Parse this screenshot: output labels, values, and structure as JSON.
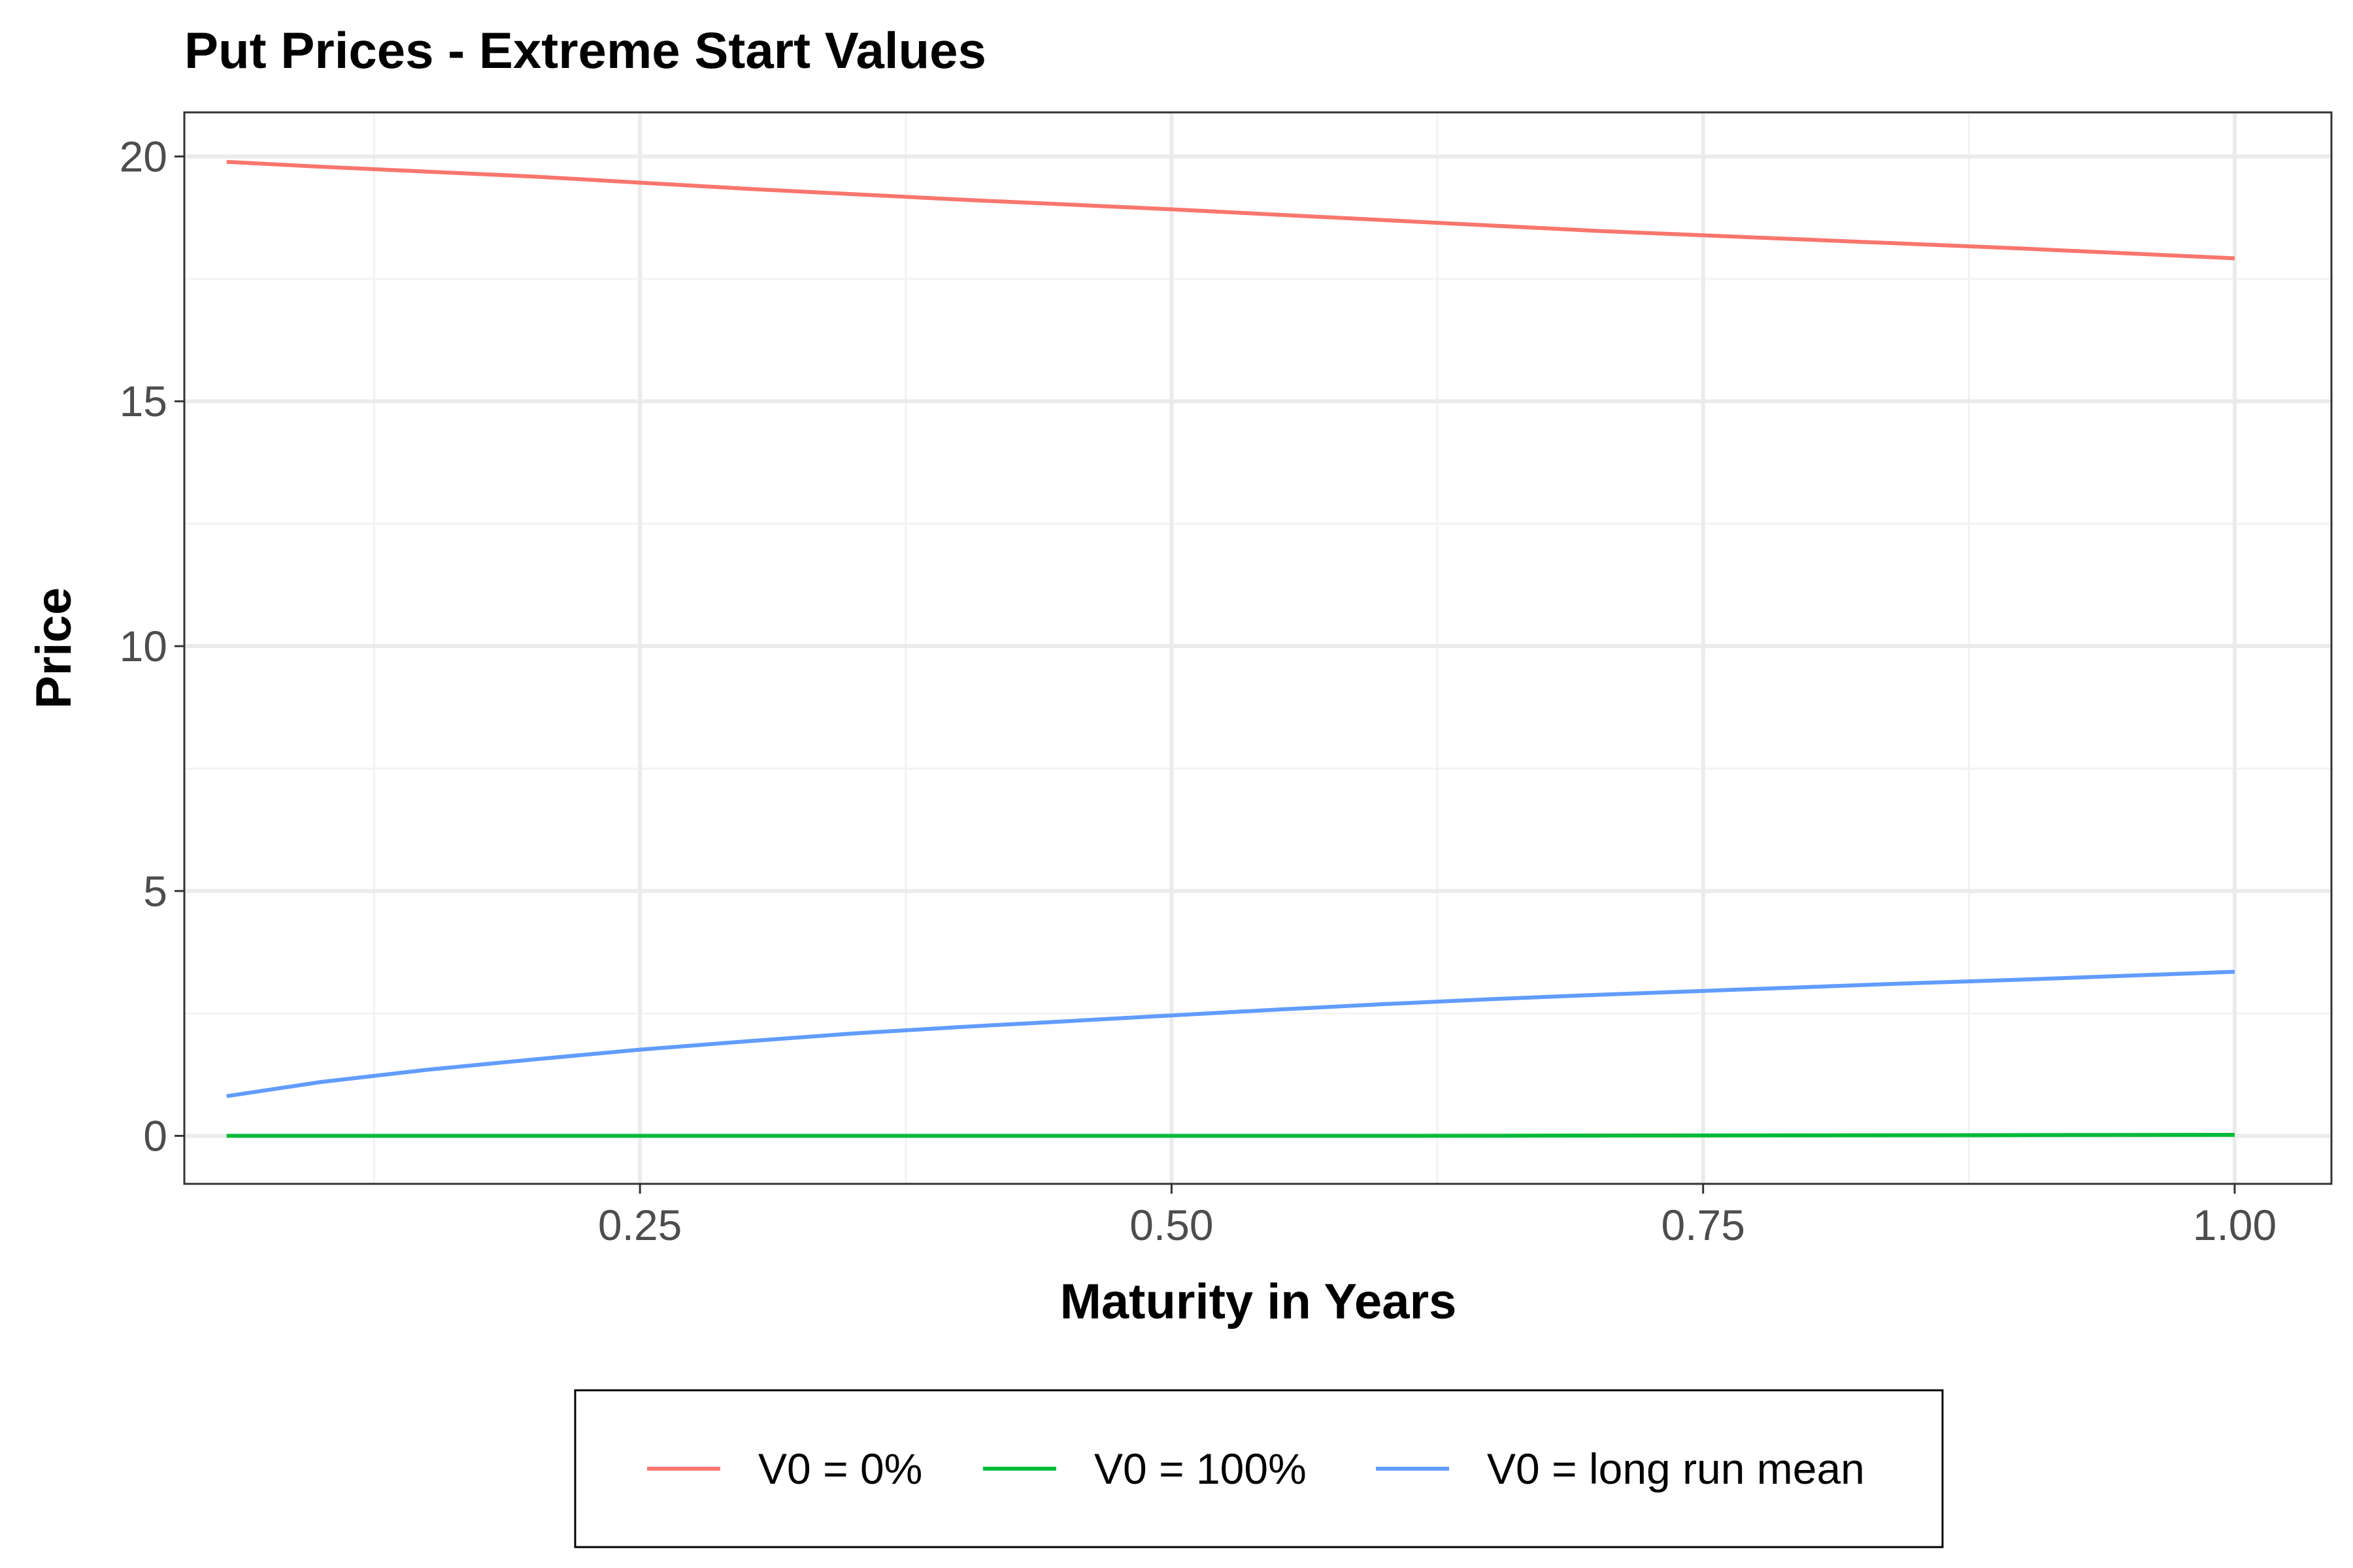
{
  "chart_data": {
    "type": "line",
    "title": "Put Prices - Extreme Start Values",
    "xlabel": "Maturity in Years",
    "ylabel": "Price",
    "xlim": [
      0.0357,
      1.0455
    ],
    "ylim": [
      -0.98,
      20.9
    ],
    "x_ticks": [
      0.25,
      0.5,
      0.75,
      1.0
    ],
    "x_tick_labels": [
      "0.25",
      "0.50",
      "0.75",
      "1.00"
    ],
    "y_ticks": [
      0,
      5,
      10,
      15,
      20
    ],
    "y_tick_labels": [
      "0",
      "5",
      "10",
      "15",
      "20"
    ],
    "grid": true,
    "legend_position": "bottom",
    "series": [
      {
        "name": "V0 = 0%",
        "color": "#F8766D",
        "x": [
          0.0556,
          0.1,
          0.2,
          0.3,
          0.4,
          0.5,
          0.6,
          0.7,
          0.8,
          0.9,
          1.0
        ],
        "y": [
          19.89,
          19.79,
          19.59,
          19.34,
          19.12,
          18.92,
          18.7,
          18.48,
          18.3,
          18.12,
          17.92
        ]
      },
      {
        "name": "V0 = 100%",
        "color": "#00BA38",
        "x": [
          0.0556,
          0.2,
          0.4,
          0.6,
          0.8,
          1.0
        ],
        "y": [
          0.0,
          0.0,
          0.0,
          0.0,
          0.01,
          0.02
        ]
      },
      {
        "name": "V0 = long run mean",
        "color": "#619CFF",
        "x": [
          0.0556,
          0.1,
          0.15,
          0.2,
          0.25,
          0.3,
          0.35,
          0.4,
          0.45,
          0.5,
          0.55,
          0.6,
          0.65,
          0.7,
          0.75,
          0.8,
          0.85,
          0.9,
          0.95,
          1.0
        ],
        "y": [
          0.81,
          1.1,
          1.35,
          1.56,
          1.76,
          1.93,
          2.09,
          2.22,
          2.34,
          2.46,
          2.58,
          2.69,
          2.79,
          2.88,
          2.96,
          3.04,
          3.12,
          3.19,
          3.27,
          3.35
        ]
      }
    ]
  }
}
